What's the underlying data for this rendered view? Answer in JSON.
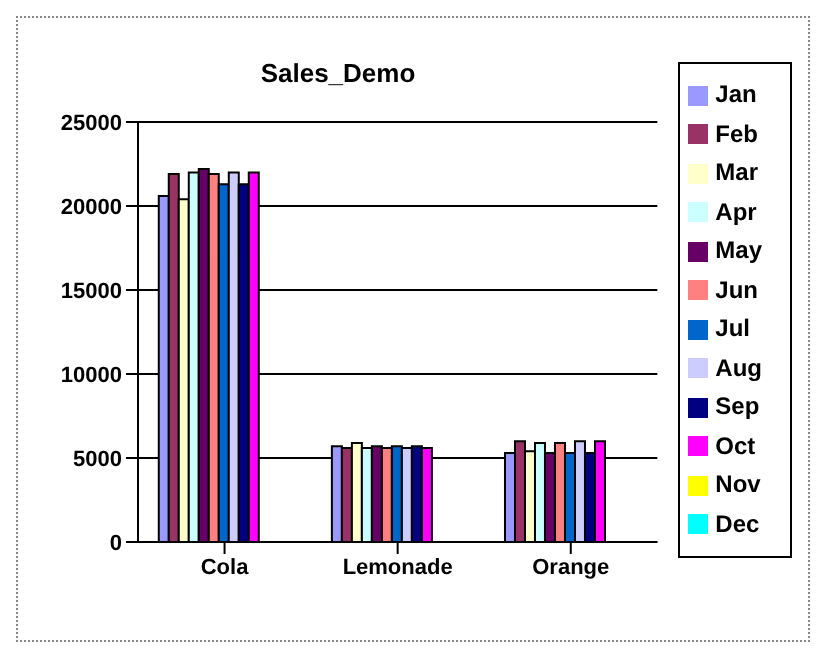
{
  "chart_data": {
    "type": "bar",
    "title": "Sales_Demo",
    "categories": [
      "Cola",
      "Lemonade",
      "Orange"
    ],
    "series": [
      {
        "name": "Jan",
        "color": "#9999ff",
        "values": [
          20600,
          5700,
          5300
        ]
      },
      {
        "name": "Feb",
        "color": "#993366",
        "values": [
          21900,
          5600,
          6000
        ]
      },
      {
        "name": "Mar",
        "color": "#ffffcc",
        "values": [
          20400,
          5900,
          5400
        ]
      },
      {
        "name": "Apr",
        "color": "#ccffff",
        "values": [
          22000,
          5600,
          5900
        ]
      },
      {
        "name": "May",
        "color": "#660066",
        "values": [
          22200,
          5700,
          5300
        ]
      },
      {
        "name": "Jun",
        "color": "#ff8080",
        "values": [
          21900,
          5600,
          5900
        ]
      },
      {
        "name": "Jul",
        "color": "#0066cc",
        "values": [
          21300,
          5700,
          5300
        ]
      },
      {
        "name": "Aug",
        "color": "#ccccff",
        "values": [
          22000,
          5600,
          6000
        ]
      },
      {
        "name": "Sep",
        "color": "#000080",
        "values": [
          21300,
          5700,
          5300
        ]
      },
      {
        "name": "Oct",
        "color": "#ff00ff",
        "values": [
          22000,
          5600,
          6000
        ]
      },
      {
        "name": "Nov",
        "color": "#ffff00",
        "values": [
          null,
          null,
          null
        ]
      },
      {
        "name": "Dec",
        "color": "#00ffff",
        "values": [
          null,
          null,
          null
        ]
      }
    ],
    "ylim": [
      0,
      25000
    ],
    "yticks": [
      0,
      5000,
      10000,
      15000,
      20000,
      25000
    ],
    "grid": "y",
    "legend": "right"
  }
}
